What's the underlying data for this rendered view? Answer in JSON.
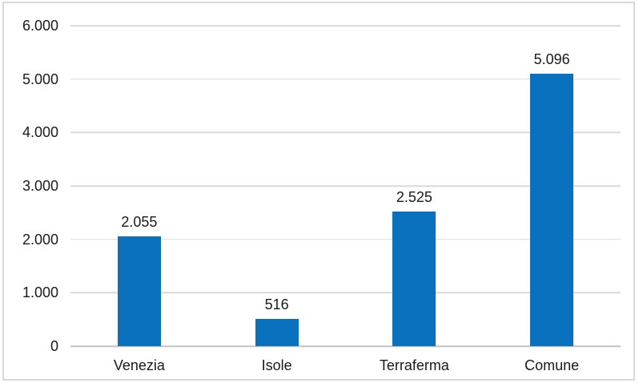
{
  "chart_data": {
    "type": "bar",
    "title": "",
    "xlabel": "",
    "ylabel": "",
    "categories": [
      "Venezia",
      "Isole",
      "Terraferma",
      "Comune"
    ],
    "values": [
      2055,
      516,
      2525,
      5096
    ],
    "value_labels": [
      "2.055",
      "516",
      "2.525",
      "5.096"
    ],
    "ylim": [
      0,
      6000
    ],
    "y_ticks": [
      {
        "value": 0,
        "label": "0"
      },
      {
        "value": 1000,
        "label": "1.000"
      },
      {
        "value": 2000,
        "label": "2.000"
      },
      {
        "value": 3000,
        "label": "3.000"
      },
      {
        "value": 4000,
        "label": "4.000"
      },
      {
        "value": 5000,
        "label": "5.000"
      },
      {
        "value": 6000,
        "label": "6.000"
      }
    ],
    "grid": true,
    "legend": false,
    "colors": {
      "bar": "#0A71BE",
      "gridline": "#D9D9D9",
      "axis_line": "#C3C3C3",
      "frame_border": "#D9D9D9",
      "background": "#FFFFFF",
      "text": "#1A1A1A"
    }
  }
}
